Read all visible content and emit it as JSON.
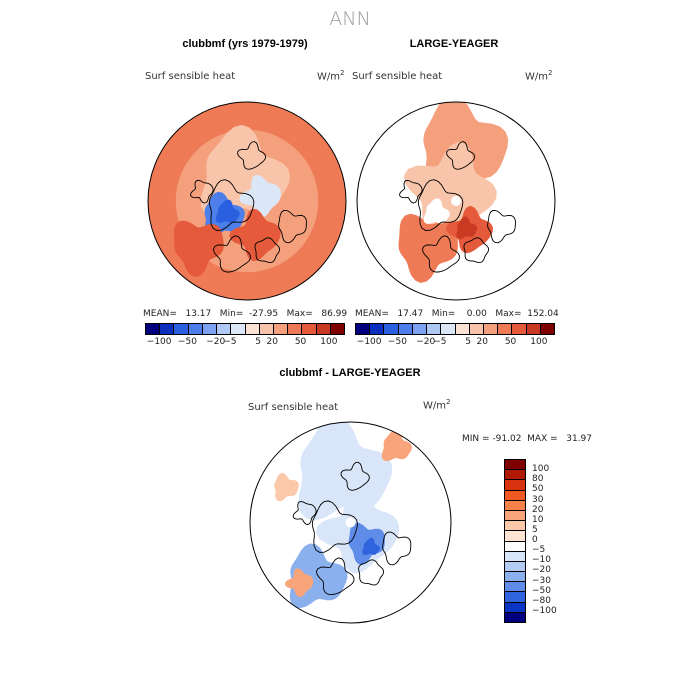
{
  "page_title": "ANN",
  "panels": [
    {
      "title": "clubbmf (yrs 1979-1979)",
      "field": "Surf sensible heat",
      "units_base": "W/m",
      "units_exp": "2",
      "stats": "MEAN=   13.17   Min=  -27.95   Max=   86.99"
    },
    {
      "title": "LARGE-YEAGER",
      "field": "Surf sensible heat",
      "units_base": "W/m",
      "units_exp": "2",
      "stats": "MEAN=   17.47   Min=    0.00   Max=  152.04"
    },
    {
      "title": "clubbmf - LARGE-YEAGER",
      "field": "Surf sensible heat",
      "units_base": "W/m",
      "units_exp": "2",
      "stats": "MIN = -91.02  MAX =   31.97"
    }
  ],
  "chart_data": [
    {
      "type": "heatmap",
      "projection": "north polar stereographic",
      "title": "clubbmf (yrs 1979-1979)",
      "field": "Surf sensible heat",
      "units": "W/m^2",
      "summary": {
        "mean": 13.17,
        "min": -27.95,
        "max": 86.99
      },
      "colorbar_levels": [
        -100,
        -50,
        -20,
        -5,
        5,
        20,
        50,
        100
      ],
      "colorbar_tick_labels": [
        "-100",
        "-50",
        "-20",
        "-5",
        "5",
        "20",
        "50",
        "100"
      ],
      "colorbar_colors": [
        "#00007f",
        "#0d2fbf",
        "#2a5fe0",
        "#4d7eea",
        "#7ea2f2",
        "#b0c8f4",
        "#dbe6f7",
        "#fbe2d4",
        "#f9c5aa",
        "#f4a07c",
        "#ee7a56",
        "#e55a3a",
        "#c93a22",
        "#7f0000"
      ]
    },
    {
      "type": "heatmap",
      "projection": "north polar stereographic",
      "title": "LARGE-YEAGER",
      "field": "Surf sensible heat",
      "units": "W/m^2",
      "summary": {
        "mean": 17.47,
        "min": 0.0,
        "max": 152.04
      },
      "colorbar_levels": [
        -100,
        -50,
        -20,
        -5,
        5,
        20,
        50,
        100
      ],
      "colorbar_tick_labels": [
        "-100",
        "-50",
        "-20",
        "-5",
        "5",
        "20",
        "50",
        "100"
      ],
      "colorbar_colors": [
        "#00007f",
        "#0d2fbf",
        "#2a5fe0",
        "#4d7eea",
        "#7ea2f2",
        "#b0c8f4",
        "#dbe6f7",
        "#fbe2d4",
        "#f9c5aa",
        "#f4a07c",
        "#ee7a56",
        "#e55a3a",
        "#c93a22",
        "#7f0000"
      ]
    },
    {
      "type": "heatmap",
      "projection": "north polar stereographic",
      "title": "clubbmf - LARGE-YEAGER",
      "field": "Surf sensible heat",
      "units": "W/m^2",
      "summary": {
        "min": -91.02,
        "max": 31.97
      },
      "colorbar_levels": [
        100,
        80,
        50,
        30,
        20,
        10,
        5,
        0,
        -5,
        -10,
        -20,
        -30,
        -50,
        -80,
        -100
      ],
      "colorbar_tick_labels": [
        "100",
        "80",
        "50",
        "30",
        "20",
        "10",
        "5",
        "0",
        "−5",
        "−10",
        "−20",
        "−30",
        "−50",
        "−80",
        "−100"
      ],
      "colorbar_colors": [
        "#7f0000",
        "#b01a05",
        "#d8330f",
        "#f05a22",
        "#f7814a",
        "#f9a57c",
        "#fbc8aa",
        "#fde4d4",
        "#ffffff",
        "#d9e6f9",
        "#b4ccf3",
        "#8bb0ee",
        "#5f8ce8",
        "#2f64de",
        "#0a35c4",
        "#00007f"
      ]
    }
  ],
  "colors": {
    "title_gray": "#999999",
    "coast": "#000000"
  }
}
